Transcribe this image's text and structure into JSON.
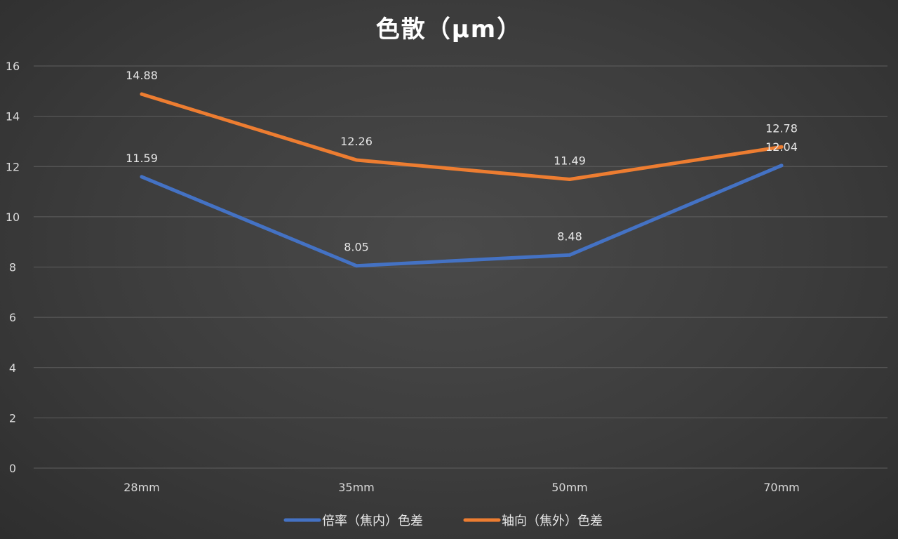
{
  "chart_data": {
    "type": "line",
    "title": "色散（μm）",
    "xlabel": "",
    "ylabel": "",
    "categories": [
      "28mm",
      "35mm",
      "50mm",
      "70mm"
    ],
    "ylim": [
      0,
      16
    ],
    "yticks": [
      0,
      2,
      4,
      6,
      8,
      10,
      12,
      14,
      16
    ],
    "grid": true,
    "legend_position": "bottom",
    "series": [
      {
        "name": "倍率（焦内）色差",
        "values": [
          11.59,
          8.05,
          8.48,
          12.04
        ],
        "color": "#4472c4"
      },
      {
        "name": "轴向（焦外）色差",
        "values": [
          14.88,
          12.26,
          11.49,
          12.78
        ],
        "color": "#ed7d31"
      }
    ]
  }
}
